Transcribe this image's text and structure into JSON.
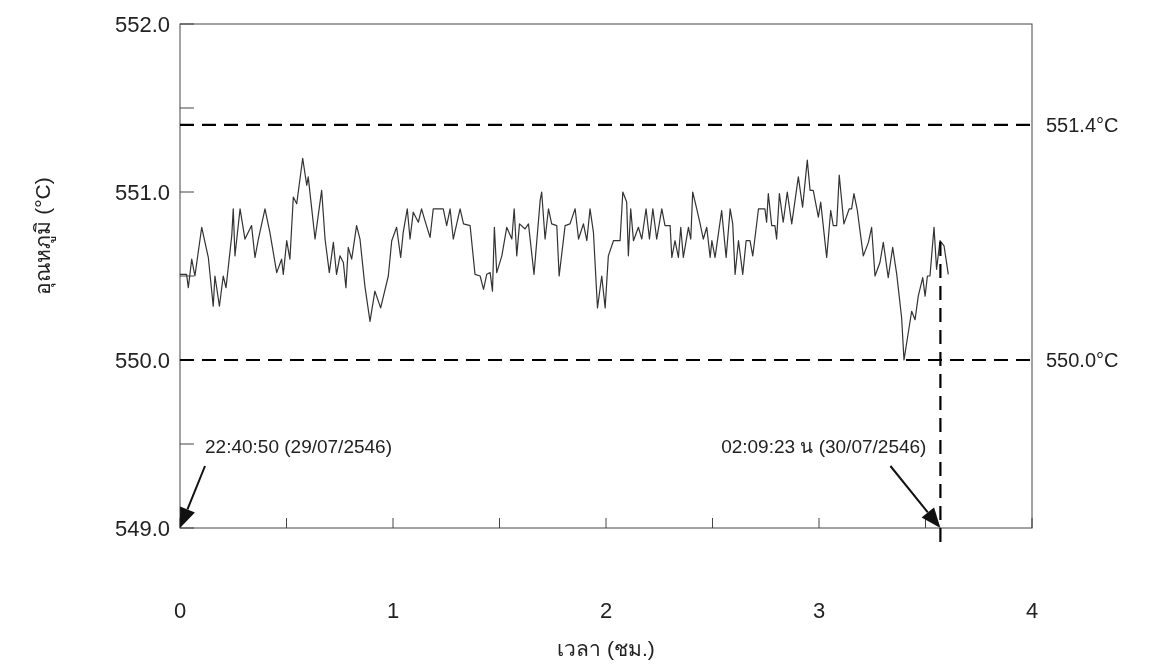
{
  "chart_data": {
    "type": "line",
    "xlabel": "เวลา (ชม.)",
    "ylabel": "อุณหภูมิ (°C)",
    "xlim": [
      0,
      4
    ],
    "ylim": [
      549,
      552
    ],
    "xticks": [
      0,
      {
        "value": 0.5,
        "label": null
      },
      1,
      {
        "value": 1.5,
        "label": null
      },
      2,
      {
        "value": 2.5,
        "label": null
      },
      3,
      {
        "value": 3.5,
        "label": null
      },
      4
    ],
    "yticks": [
      {
        "value": 549,
        "label": "549.0"
      },
      {
        "value": 549.5,
        "label": null
      },
      {
        "value": 550,
        "label": "550.0"
      },
      {
        "value": 550.5,
        "label": null
      },
      {
        "value": 551,
        "label": "551.0"
      },
      {
        "value": 551.5,
        "label": null
      },
      {
        "value": 552,
        "label": "552.0"
      }
    ],
    "grid": false,
    "marker": "none",
    "line_style": "solid",
    "series": [
      {
        "color": "#333333",
        "x": [
          0,
          0.031,
          0.039,
          0.055,
          0.07,
          0.102,
          0.133,
          0.156,
          0.164,
          0.185,
          0.203,
          0.216,
          0.243,
          0.25,
          0.258,
          0.282,
          0.305,
          0.336,
          0.352,
          0.368,
          0.399,
          0.422,
          0.454,
          0.477,
          0.485,
          0.501,
          0.516,
          0.532,
          0.548,
          0.576,
          0.595,
          0.602,
          0.634,
          0.665,
          0.681,
          0.701,
          0.72,
          0.735,
          0.751,
          0.767,
          0.779,
          0.79,
          0.806,
          0.829,
          0.845,
          0.868,
          0.892,
          0.915,
          0.942,
          0.978,
          0.994,
          1.017,
          1.036,
          1.048,
          1.067,
          1.08,
          1.095,
          1.119,
          1.134,
          1.15,
          1.174,
          1.189,
          1.236,
          1.252,
          1.268,
          1.283,
          1.315,
          1.331,
          1.362,
          1.385,
          1.409,
          1.425,
          1.44,
          1.456,
          1.467,
          1.476,
          1.487,
          1.511,
          1.534,
          1.558,
          1.569,
          1.581,
          1.594,
          1.62,
          1.636,
          1.662,
          1.691,
          1.698,
          1.714,
          1.73,
          1.745,
          1.769,
          1.78,
          1.808,
          1.831,
          1.855,
          1.871,
          1.894,
          1.91,
          1.925,
          1.941,
          1.96,
          1.98,
          1.996,
          2.011,
          2.035,
          2.066,
          2.079,
          2.097,
          2.105,
          2.116,
          2.129,
          2.152,
          2.168,
          2.188,
          2.204,
          2.22,
          2.238,
          2.262,
          2.277,
          2.301,
          2.309,
          2.324,
          2.34,
          2.351,
          2.363,
          2.387,
          2.398,
          2.407,
          2.426,
          2.442,
          2.457,
          2.473,
          2.489,
          2.497,
          2.512,
          2.543,
          2.564,
          2.583,
          2.595,
          2.606,
          2.622,
          2.642,
          2.658,
          2.676,
          2.689,
          2.716,
          2.746,
          2.754,
          2.762,
          2.778,
          2.793,
          2.801,
          2.814,
          2.832,
          2.851,
          2.872,
          2.903,
          2.923,
          2.945,
          2.958,
          2.973,
          2.997,
          3.008,
          3.036,
          3.055,
          3.067,
          3.083,
          3.095,
          3.117,
          3.142,
          3.153,
          3.164,
          3.18,
          3.208,
          3.232,
          3.247,
          3.263,
          3.286,
          3.302,
          3.325,
          3.346,
          3.365,
          3.388,
          3.399,
          3.435,
          3.451,
          3.466,
          3.487,
          3.498,
          3.509,
          3.521,
          3.54,
          3.552,
          3.568,
          3.587,
          3.607
        ],
        "values": [
          550.51,
          550.51,
          550.43,
          550.6,
          550.5,
          550.79,
          550.61,
          550.32,
          550.5,
          550.32,
          550.5,
          550.43,
          550.74,
          550.9,
          550.62,
          550.9,
          550.72,
          550.8,
          550.61,
          550.72,
          550.9,
          550.76,
          550.52,
          550.6,
          550.51,
          550.71,
          550.6,
          550.97,
          550.93,
          551.2,
          551.04,
          551.09,
          550.72,
          551.01,
          550.72,
          550.52,
          550.7,
          550.51,
          550.62,
          550.58,
          550.43,
          550.67,
          550.6,
          550.8,
          550.72,
          550.44,
          550.23,
          550.41,
          550.31,
          550.5,
          550.71,
          550.79,
          550.61,
          550.76,
          550.9,
          550.72,
          550.88,
          550.82,
          550.9,
          550.83,
          550.73,
          550.9,
          550.9,
          550.8,
          550.9,
          550.72,
          550.9,
          550.81,
          550.8,
          550.51,
          550.5,
          550.42,
          550.51,
          550.52,
          550.41,
          550.79,
          550.52,
          550.62,
          550.79,
          550.72,
          550.9,
          550.62,
          550.81,
          550.78,
          550.81,
          550.51,
          550.95,
          551.0,
          550.72,
          550.9,
          550.81,
          550.8,
          550.5,
          550.8,
          550.81,
          550.9,
          550.72,
          550.81,
          550.71,
          550.9,
          550.76,
          550.31,
          550.5,
          550.31,
          550.62,
          550.71,
          550.71,
          551.0,
          550.94,
          550.62,
          550.9,
          550.71,
          550.79,
          550.72,
          550.9,
          550.72,
          550.9,
          550.72,
          550.9,
          550.8,
          550.8,
          550.61,
          550.71,
          550.61,
          550.79,
          550.61,
          550.79,
          550.72,
          551.0,
          550.9,
          550.81,
          550.72,
          550.79,
          550.61,
          550.71,
          550.61,
          550.89,
          550.61,
          550.9,
          550.81,
          550.51,
          550.71,
          550.51,
          550.71,
          550.71,
          550.62,
          550.9,
          550.9,
          550.82,
          550.99,
          550.8,
          550.8,
          550.72,
          550.99,
          550.82,
          551.0,
          550.81,
          551.09,
          550.91,
          551.19,
          551.01,
          551.01,
          550.85,
          550.94,
          550.61,
          550.89,
          550.8,
          550.8,
          551.1,
          550.81,
          550.9,
          550.9,
          550.99,
          550.89,
          550.62,
          550.7,
          550.79,
          550.5,
          550.58,
          550.7,
          550.49,
          550.67,
          550.51,
          550.25,
          550.0,
          550.29,
          550.24,
          550.38,
          550.49,
          550.38,
          550.5,
          550.5,
          550.79,
          550.54,
          550.71,
          550.68,
          550.51
        ]
      }
    ],
    "ref_lines": [
      {
        "axis": "y",
        "value": 551.4,
        "label": "551.4°C",
        "color": "#000000",
        "line_style": "dashed"
      },
      {
        "axis": "y",
        "value": 550,
        "label": "550.0°C",
        "color": "#000000",
        "line_style": "dashed"
      },
      {
        "axis": "x",
        "value": 3.57,
        "color": "#000000",
        "line_style": "dashed"
      }
    ],
    "annotations": [
      "22:40:50 (29/07/2546)",
      "02:09:23 น (30/07/2546)"
    ]
  }
}
